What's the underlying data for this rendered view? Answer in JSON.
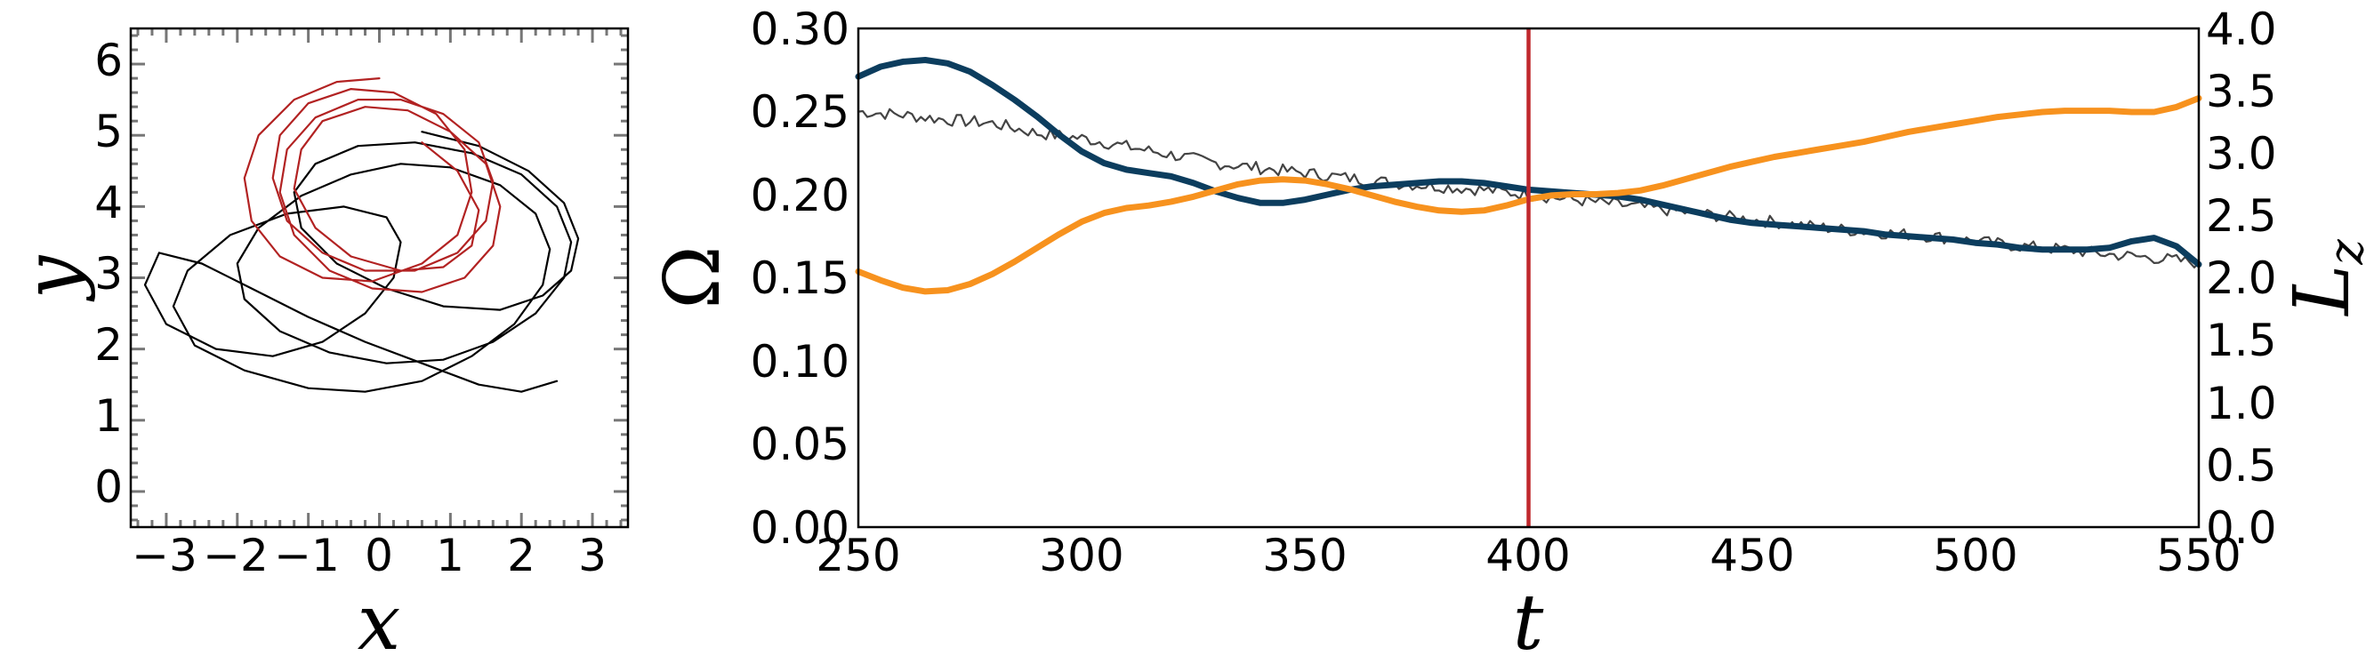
{
  "chart_data": [
    {
      "type": "line",
      "xlabel": "x",
      "ylabel": "y",
      "xlim": [
        -3.5,
        3.5
      ],
      "ylim": [
        -0.5,
        6.5
      ],
      "xticks": [
        -3,
        -2,
        -1,
        0,
        1,
        2,
        3
      ],
      "yticks": [
        0,
        1,
        2,
        3,
        4,
        5,
        6
      ],
      "xtick_labels": [
        "−3",
        "−2",
        "−1",
        "0",
        "1",
        "2",
        "3"
      ],
      "ytick_labels": [
        "0",
        "1",
        "2",
        "3",
        "4",
        "5",
        "6"
      ],
      "grid": false,
      "series": [
        {
          "color": "#000000",
          "trajectory": "looping orbit",
          "x": [
            2.5,
            2.0,
            1.4,
            0.6,
            -0.2,
            -1.0,
            -1.8,
            -2.5,
            -3.1,
            -3.3,
            -3.0,
            -2.3,
            -1.5,
            -0.8,
            -0.2,
            0.2,
            0.3,
            0.1,
            -0.5,
            -1.3,
            -2.1,
            -2.7,
            -2.9,
            -2.6,
            -1.9,
            -1.0,
            -0.2,
            0.6,
            1.3,
            1.9,
            2.3,
            2.4,
            2.2,
            1.7,
            1.0,
            0.3,
            -0.4,
            -1.1,
            -1.7,
            -2.0,
            -1.9,
            -1.4,
            -0.7,
            0.1,
            0.9,
            1.6,
            2.2,
            2.6,
            2.7,
            2.5,
            2.0,
            1.3,
            0.5,
            -0.3,
            -0.9,
            -1.2,
            -1.1,
            -0.6,
            0.1,
            0.9,
            1.7,
            2.3,
            2.7,
            2.8,
            2.6,
            2.1,
            1.4,
            0.6
          ],
          "y": [
            1.55,
            1.4,
            1.5,
            1.8,
            2.1,
            2.45,
            2.85,
            3.2,
            3.35,
            2.9,
            2.35,
            2.0,
            1.9,
            2.1,
            2.5,
            3.0,
            3.5,
            3.85,
            4.0,
            3.9,
            3.6,
            3.1,
            2.6,
            2.05,
            1.7,
            1.45,
            1.4,
            1.55,
            1.9,
            2.35,
            2.9,
            3.4,
            3.9,
            4.3,
            4.55,
            4.6,
            4.45,
            4.15,
            3.7,
            3.2,
            2.7,
            2.25,
            1.95,
            1.8,
            1.85,
            2.1,
            2.5,
            3.0,
            3.5,
            4.0,
            4.45,
            4.75,
            4.9,
            4.85,
            4.6,
            4.2,
            3.7,
            3.2,
            2.85,
            2.6,
            2.55,
            2.75,
            3.1,
            3.55,
            4.05,
            4.5,
            4.85,
            5.05
          ]
        },
        {
          "color": "#b22222",
          "trajectory": "nested ellipses",
          "x": [
            0.0,
            -0.6,
            -1.2,
            -1.7,
            -1.9,
            -1.8,
            -1.4,
            -0.8,
            -0.1,
            0.6,
            1.1,
            1.3,
            1.2,
            0.8,
            0.2,
            -0.4,
            -1.0,
            -1.4,
            -1.5,
            -1.3,
            -0.8,
            -0.2,
            0.5,
            1.1,
            1.5,
            1.6,
            1.4,
            0.9,
            0.3,
            -0.3,
            -0.9,
            -1.3,
            -1.4,
            -1.2,
            -0.7,
            -0.1,
            0.6,
            1.2,
            1.6,
            1.7,
            1.5,
            1.0,
            0.4,
            -0.2,
            -0.8,
            -1.1,
            -1.2,
            -0.9,
            -0.4,
            0.3,
            0.9,
            1.3,
            1.4,
            1.1,
            0.6
          ],
          "y": [
            5.8,
            5.75,
            5.5,
            5.0,
            4.4,
            3.8,
            3.3,
            3.0,
            2.95,
            3.2,
            3.6,
            4.2,
            4.8,
            5.3,
            5.6,
            5.65,
            5.45,
            5.0,
            4.4,
            3.8,
            3.35,
            3.1,
            3.1,
            3.35,
            3.8,
            4.35,
            4.9,
            5.3,
            5.5,
            5.5,
            5.25,
            4.8,
            4.2,
            3.6,
            3.1,
            2.85,
            2.8,
            3.0,
            3.45,
            4.0,
            4.6,
            5.05,
            5.35,
            5.4,
            5.2,
            4.8,
            4.25,
            3.7,
            3.3,
            3.1,
            3.15,
            3.45,
            3.95,
            4.5,
            4.9
          ]
        }
      ]
    },
    {
      "type": "line",
      "xlabel": "t",
      "ylabel": "Ω",
      "ylabel_right": "L_z",
      "xlim": [
        250,
        550
      ],
      "ylim": [
        0.0,
        0.3
      ],
      "ylim_right": [
        0.0,
        4.0
      ],
      "xticks": [
        250,
        300,
        350,
        400,
        450,
        500,
        550
      ],
      "yticks": [
        0.0,
        0.05,
        0.1,
        0.15,
        0.2,
        0.25,
        0.3
      ],
      "yticks_right": [
        0.0,
        0.5,
        1.0,
        1.5,
        2.0,
        2.5,
        3.0,
        3.5,
        4.0
      ],
      "xtick_labels": [
        "250",
        "300",
        "350",
        "400",
        "450",
        "500",
        "550"
      ],
      "ytick_labels": [
        "0.00",
        "0.05",
        "0.10",
        "0.15",
        "0.20",
        "0.25",
        "0.30"
      ],
      "ytick_labels_right": [
        "0.0",
        "0.5",
        "1.0",
        "1.5",
        "2.0",
        "2.5",
        "3.0",
        "3.5",
        "4.0"
      ],
      "grid": false,
      "vline": {
        "x": 400,
        "color": "#c0282d"
      },
      "series": [
        {
          "axis": "left",
          "color": "#444444",
          "style": "thin noisy",
          "x": [
            250,
            260,
            270,
            280,
            290,
            300,
            310,
            320,
            330,
            340,
            350,
            360,
            370,
            380,
            390,
            400,
            410,
            420,
            430,
            440,
            450,
            460,
            470,
            480,
            490,
            500,
            510,
            520,
            530,
            540,
            550
          ],
          "y": [
            0.25,
            0.248,
            0.245,
            0.243,
            0.237,
            0.234,
            0.229,
            0.224,
            0.219,
            0.216,
            0.213,
            0.21,
            0.207,
            0.205,
            0.203,
            0.2,
            0.197,
            0.194,
            0.191,
            0.188,
            0.185,
            0.182,
            0.179,
            0.177,
            0.175,
            0.172,
            0.169,
            0.167,
            0.164,
            0.162,
            0.159
          ]
        },
        {
          "axis": "left",
          "color": "#0c3d5e",
          "style": "thick",
          "x": [
            250,
            255,
            260,
            265,
            270,
            275,
            280,
            285,
            290,
            295,
            300,
            305,
            310,
            315,
            320,
            325,
            330,
            335,
            340,
            345,
            350,
            355,
            360,
            365,
            370,
            375,
            380,
            385,
            390,
            395,
            400,
            405,
            410,
            415,
            420,
            425,
            430,
            435,
            440,
            445,
            450,
            455,
            460,
            465,
            470,
            475,
            480,
            485,
            490,
            495,
            500,
            505,
            510,
            515,
            520,
            525,
            530,
            535,
            540,
            545,
            550
          ],
          "y": [
            0.271,
            0.277,
            0.28,
            0.281,
            0.279,
            0.274,
            0.266,
            0.257,
            0.247,
            0.236,
            0.226,
            0.219,
            0.215,
            0.213,
            0.211,
            0.207,
            0.202,
            0.198,
            0.195,
            0.195,
            0.197,
            0.2,
            0.203,
            0.205,
            0.206,
            0.207,
            0.208,
            0.208,
            0.207,
            0.205,
            0.203,
            0.202,
            0.201,
            0.2,
            0.199,
            0.197,
            0.194,
            0.191,
            0.188,
            0.185,
            0.183,
            0.182,
            0.181,
            0.18,
            0.179,
            0.178,
            0.176,
            0.175,
            0.174,
            0.173,
            0.171,
            0.17,
            0.168,
            0.167,
            0.167,
            0.167,
            0.168,
            0.172,
            0.174,
            0.169,
            0.158
          ]
        },
        {
          "axis": "right",
          "color": "#f7921e",
          "style": "thick",
          "x": [
            250,
            255,
            260,
            265,
            270,
            275,
            280,
            285,
            290,
            295,
            300,
            305,
            310,
            315,
            320,
            325,
            330,
            335,
            340,
            345,
            350,
            355,
            360,
            365,
            370,
            375,
            380,
            385,
            390,
            395,
            400,
            405,
            410,
            415,
            420,
            425,
            430,
            435,
            440,
            445,
            450,
            455,
            460,
            465,
            470,
            475,
            480,
            485,
            490,
            495,
            500,
            505,
            510,
            515,
            520,
            525,
            530,
            535,
            540,
            545,
            550
          ],
          "y": [
            2.05,
            1.98,
            1.92,
            1.89,
            1.9,
            1.95,
            2.03,
            2.13,
            2.24,
            2.35,
            2.45,
            2.52,
            2.56,
            2.58,
            2.61,
            2.65,
            2.7,
            2.75,
            2.78,
            2.79,
            2.78,
            2.75,
            2.71,
            2.66,
            2.61,
            2.57,
            2.54,
            2.53,
            2.54,
            2.58,
            2.63,
            2.66,
            2.67,
            2.67,
            2.68,
            2.7,
            2.74,
            2.79,
            2.84,
            2.89,
            2.93,
            2.97,
            3.0,
            3.03,
            3.06,
            3.09,
            3.13,
            3.17,
            3.2,
            3.23,
            3.26,
            3.29,
            3.31,
            3.33,
            3.34,
            3.34,
            3.34,
            3.33,
            3.33,
            3.37,
            3.44
          ]
        }
      ]
    }
  ]
}
